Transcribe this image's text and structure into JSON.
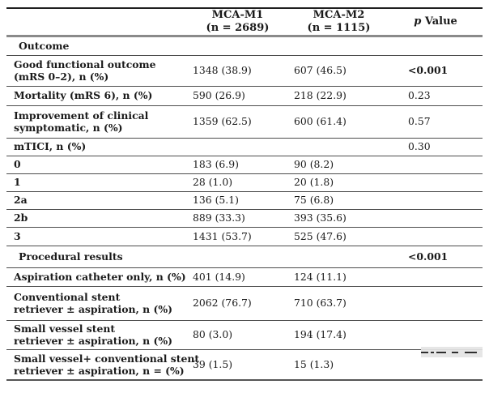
{
  "colors": {
    "text": "#1a1a1a",
    "rule_top": "#1f1f1f",
    "rule_header_thick": "#8a8a8a",
    "rule_row": "#4d4d4d"
  },
  "header": {
    "col2_line1": "MCA-M1",
    "col2_line2": "(n = 2689)",
    "col3_line1": "MCA-M2",
    "col3_line2": "(n = 1115)",
    "p_italic": "p",
    "p_rest": "Value"
  },
  "rows": [
    {
      "label1": "Outcome",
      "m1": "",
      "m2": "",
      "p": ""
    },
    {
      "label1": "Good functional outcome",
      "label2": "(mRS 0–2), n (%)",
      "m1": "1348 (38.9)",
      "m2": "607 (46.5)",
      "p": "<0.001"
    },
    {
      "label1": "Mortality (mRS 6), n (%)",
      "m1": "590 (26.9)",
      "m2": "218 (22.9)",
      "p": "0.23"
    },
    {
      "label1": "Improvement of clinical",
      "label2": "symptomatic, n (%)",
      "m1": "1359 (62.5)",
      "m2": "600 (61.4)",
      "p": "0.57"
    },
    {
      "label1": "mTICI, n (%)",
      "m1": "",
      "m2": "",
      "p": "0.30"
    },
    {
      "label1": "0",
      "m1": "183 (6.9)",
      "m2": "90 (8.2)",
      "p": ""
    },
    {
      "label1": "1",
      "m1": "28 (1.0)",
      "m2": "20 (1.8)",
      "p": ""
    },
    {
      "label1": "2a",
      "m1": "136 (5.1)",
      "m2": "75 (6.8)",
      "p": ""
    },
    {
      "label1": "2b",
      "m1": "889 (33.3)",
      "m2": "393 (35.6)",
      "p": ""
    },
    {
      "label1": "3",
      "m1": "1431 (53.7)",
      "m2": "525 (47.6)",
      "p": ""
    },
    {
      "label1": "Procedural results",
      "m1": "",
      "m2": "",
      "p": "<0.001"
    },
    {
      "label1": "Aspiration catheter only, n (%)",
      "m1": "401 (14.9)",
      "m2": "124 (11.1)",
      "p": ""
    },
    {
      "label1": "Conventional stent",
      "label2": "retriever ± aspiration, n (%)",
      "m1": "2062 (76.7)",
      "m2": "710 (63.7)",
      "p": ""
    },
    {
      "label1": "Small vessel stent",
      "label2": "retriever ± aspiration, n (%)",
      "m1": "80 (3.0)",
      "m2": "194 (17.4)",
      "p": ""
    },
    {
      "label1": "Small vessel+ conventional stent",
      "label2": "retriever ± aspiration, n = (%)",
      "m1": "39 (1.5)",
      "m2": "15 (1.3)",
      "p": ""
    }
  ]
}
